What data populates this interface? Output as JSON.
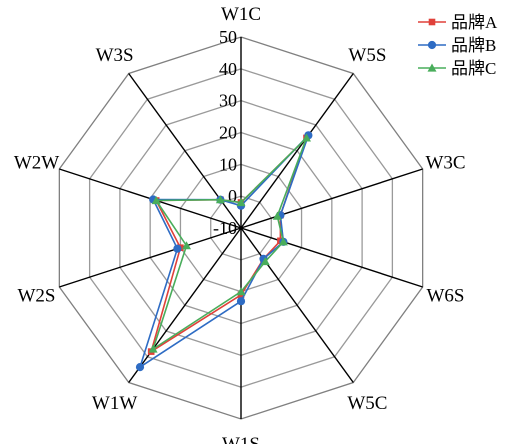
{
  "chart_data": {
    "type": "radar",
    "categories": [
      "W1C",
      "W5S",
      "W3C",
      "W6S",
      "W5C",
      "W1S",
      "W1W",
      "W2S",
      "W2W",
      "W3S"
    ],
    "rlim": [
      -10,
      50
    ],
    "ticks": [
      -10,
      0,
      10,
      20,
      30,
      40,
      50
    ],
    "tick_labels": [
      "-10",
      "0",
      "10",
      "20",
      "30",
      "40",
      "50"
    ],
    "legend_position": "top-right",
    "series": [
      {
        "name": "品牌A",
        "color": "#e0413a",
        "marker": "square",
        "values": [
          -2,
          25,
          3,
          3,
          2,
          11,
          38,
          10,
          18,
          1
        ]
      },
      {
        "name": "品牌B",
        "color": "#2e6cc4",
        "marker": "circle",
        "values": [
          -3,
          26,
          3,
          4,
          2,
          13,
          44,
          11,
          19,
          1
        ]
      },
      {
        "name": "品牌C",
        "color": "#49ad5b",
        "marker": "triangle",
        "values": [
          -2,
          25,
          2,
          4,
          3,
          10,
          37,
          8,
          18,
          1
        ]
      }
    ]
  }
}
